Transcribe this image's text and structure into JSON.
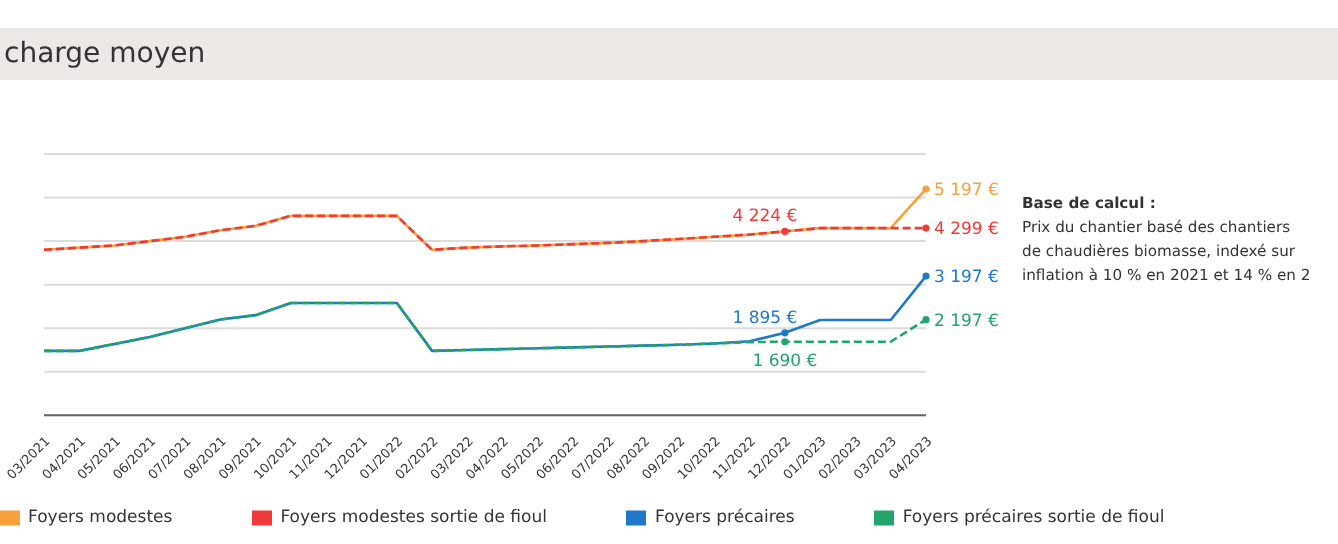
{
  "chart_data": {
    "type": "line",
    "title": "charge moyen",
    "categories": [
      "03/2021",
      "04/2021",
      "05/2021",
      "06/2021",
      "07/2021",
      "08/2021",
      "09/2021",
      "10/2021",
      "11/2021",
      "12/2021",
      "01/2022",
      "02/2022",
      "03/2022",
      "04/2022",
      "05/2022",
      "06/2022",
      "07/2022",
      "08/2022",
      "09/2022",
      "10/2022",
      "11/2022",
      "12/2022",
      "01/2023",
      "02/2023",
      "03/2023",
      "04/2023"
    ],
    "series": [
      {
        "name": "Foyers précaires",
        "color": "#1f78c8",
        "values": [
          1480,
          1480,
          1640,
          1800,
          2000,
          2200,
          2300,
          2580,
          2580,
          2580,
          2580,
          1480,
          1500,
          1520,
          1540,
          1560,
          1580,
          1600,
          1620,
          1650,
          1700,
          1895,
          2190,
          2190,
          2190,
          3197
        ],
        "value_labels": [
          null,
          null,
          null,
          null,
          null,
          null,
          null,
          null,
          null,
          null,
          null,
          null,
          null,
          null,
          null,
          null,
          null,
          null,
          null,
          null,
          null,
          "1 895 €",
          null,
          null,
          null,
          "3 197 €"
        ]
      },
      {
        "name": "Foyers modestes",
        "color": "#f7a13a",
        "values": [
          3800,
          3850,
          3900,
          4000,
          4100,
          4250,
          4350,
          4580,
          4580,
          4580,
          4580,
          3800,
          3850,
          3880,
          3900,
          3930,
          3960,
          4000,
          4050,
          4100,
          4150,
          4224,
          4299,
          4299,
          4299,
          5197
        ],
        "value_labels": [
          null,
          null,
          null,
          null,
          null,
          null,
          null,
          null,
          null,
          null,
          null,
          null,
          null,
          null,
          null,
          null,
          null,
          null,
          null,
          null,
          null,
          null,
          null,
          null,
          null,
          "5 197 €"
        ]
      },
      {
        "name": "Foyers précaires sortie de fioul",
        "color": "#21a56a",
        "line_style": "dashed",
        "values": [
          1480,
          1480,
          1640,
          1800,
          2000,
          2200,
          2300,
          2580,
          2580,
          2580,
          2580,
          1480,
          1500,
          1520,
          1540,
          1560,
          1580,
          1600,
          1620,
          1650,
          1680,
          1690,
          1690,
          1690,
          1690,
          2197
        ],
        "value_labels": [
          null,
          null,
          null,
          null,
          null,
          null,
          null,
          null,
          null,
          null,
          null,
          null,
          null,
          null,
          null,
          null,
          null,
          null,
          null,
          null,
          null,
          "1 690 €",
          null,
          null,
          null,
          "2 197 €"
        ]
      },
      {
        "name": "Foyers modestes sortie de fioul",
        "color": "#f03a3a",
        "line_style": "dashed",
        "values": [
          3800,
          3850,
          3900,
          4000,
          4100,
          4250,
          4350,
          4580,
          4580,
          4580,
          4580,
          3800,
          3850,
          3880,
          3900,
          3930,
          3960,
          4000,
          4050,
          4100,
          4150,
          4224,
          4299,
          4299,
          4299,
          4299
        ],
        "value_labels": [
          null,
          null,
          null,
          null,
          null,
          null,
          null,
          null,
          null,
          null,
          null,
          null,
          null,
          null,
          null,
          null,
          null,
          null,
          null,
          null,
          null,
          "4 224 €",
          null,
          null,
          null,
          "4 299 €"
        ]
      }
    ],
    "ylim": [
      0,
      6000
    ],
    "yticks": [
      {
        "value": 0,
        "label": null
      },
      {
        "value": 1000,
        "label": null
      },
      {
        "value": 2000,
        "label": null
      },
      {
        "value": 3000,
        "label": null
      },
      {
        "value": 4000,
        "label": null
      },
      {
        "value": 5000,
        "label": null
      },
      {
        "value": 6000,
        "label": null
      }
    ],
    "tick_labels": "x",
    "grid": "y",
    "legend": "bottom",
    "annotations": [
      "Base de calcul :",
      "Prix du chantier basé des chantiers",
      "de chaudières biomasse, indexé sur",
      "inflation à 10 % en 2021 et 14 % en 2"
    ]
  }
}
